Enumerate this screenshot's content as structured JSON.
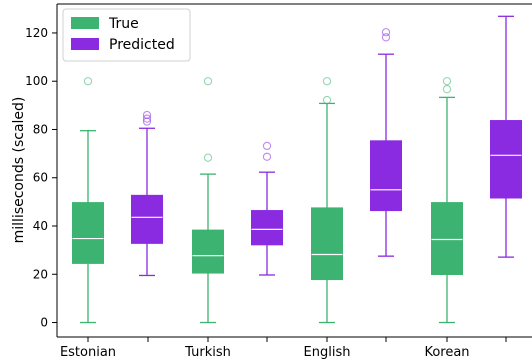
{
  "chart_data": {
    "type": "boxplot",
    "ylabel": "milliseconds (scaled)",
    "ylim": [
      -6,
      132
    ],
    "yticks": [
      0,
      20,
      40,
      60,
      80,
      100,
      120
    ],
    "categories": [
      "Estonian",
      "Turkish",
      "English",
      "Korean"
    ],
    "legend": {
      "placement": "top-left",
      "entries": [
        "True",
        "Predicted"
      ]
    },
    "series": [
      {
        "name": "True",
        "color": "#3cb371",
        "boxes": [
          {
            "category": "Estonian",
            "whisker_low": 0,
            "q1": 24.5,
            "median": 34.8,
            "q3": 49.7,
            "whisker_high": 79.5,
            "outliers": [
              100
            ]
          },
          {
            "category": "Turkish",
            "whisker_low": 0,
            "q1": 20.5,
            "median": 27.7,
            "q3": 38.3,
            "whisker_high": 61.5,
            "outliers": [
              68.3,
              100
            ]
          },
          {
            "category": "English",
            "whisker_low": 0,
            "q1": 17.8,
            "median": 28.2,
            "q3": 47.5,
            "whisker_high": 90.8,
            "outliers": [
              92.2,
              100
            ]
          },
          {
            "category": "Korean",
            "whisker_low": 0,
            "q1": 19.9,
            "median": 34.4,
            "q3": 49.7,
            "whisker_high": 93.3,
            "outliers": [
              96.7,
              100
            ]
          }
        ]
      },
      {
        "name": "Predicted",
        "color": "#8a2be2",
        "boxes": [
          {
            "category": "Estonian",
            "whisker_low": 19.5,
            "q1": 32.8,
            "median": 43.6,
            "q3": 52.7,
            "whisker_high": 80.5,
            "outliers": [
              83.3,
              84.5,
              86.0
            ]
          },
          {
            "category": "Turkish",
            "whisker_low": 19.7,
            "q1": 32.2,
            "median": 38.6,
            "q3": 46.4,
            "whisker_high": 62.3,
            "outliers": [
              68.7,
              73.2
            ]
          },
          {
            "category": "English",
            "whisker_low": 27.5,
            "q1": 46.4,
            "median": 55.0,
            "q3": 75.3,
            "whisker_high": 111.2,
            "outliers": [
              118.2,
              120.3
            ]
          },
          {
            "category": "Korean",
            "whisker_low": 27.1,
            "q1": 51.6,
            "median": 69.3,
            "q3": 83.7,
            "whisker_high": 126.9,
            "outliers": []
          }
        ]
      }
    ]
  }
}
